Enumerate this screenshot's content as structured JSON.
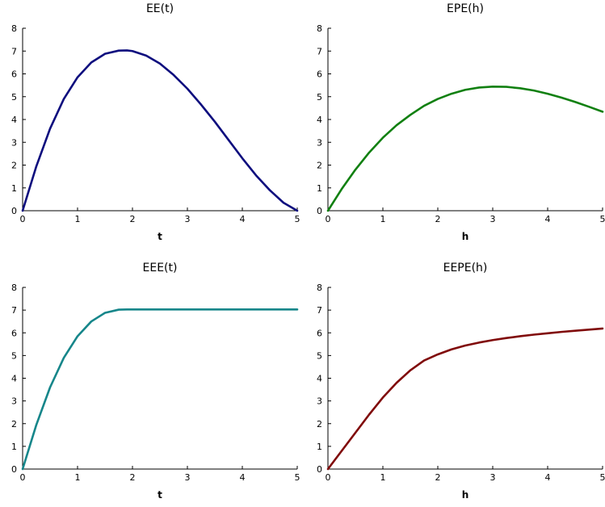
{
  "chart_data": [
    {
      "type": "line",
      "title": "EE(t)",
      "xlabel": "t",
      "ylabel": "",
      "xlim": [
        0,
        5
      ],
      "ylim": [
        0,
        8
      ],
      "x_ticks": [
        "0",
        "1",
        "2",
        "3",
        "4",
        "5"
      ],
      "y_ticks": [
        "0",
        "1",
        "2",
        "3",
        "4",
        "5",
        "6",
        "7",
        "8"
      ],
      "grid": false,
      "series": [
        {
          "color": "#0d0d7e",
          "x": [
            0,
            0.25,
            0.5,
            0.75,
            1.0,
            1.25,
            1.5,
            1.75,
            1.9,
            2.0,
            2.25,
            2.5,
            2.75,
            3.0,
            3.25,
            3.5,
            3.75,
            4.0,
            4.25,
            4.5,
            4.75,
            5.0
          ],
          "y": [
            0,
            1.95,
            3.6,
            4.9,
            5.85,
            6.5,
            6.88,
            7.02,
            7.03,
            7.0,
            6.8,
            6.45,
            5.95,
            5.35,
            4.65,
            3.9,
            3.1,
            2.3,
            1.55,
            0.9,
            0.35,
            0
          ]
        }
      ]
    },
    {
      "type": "line",
      "title": "EPE(h)",
      "xlabel": "h",
      "ylabel": "",
      "xlim": [
        0,
        5
      ],
      "ylim": [
        0,
        8
      ],
      "x_ticks": [
        "0",
        "1",
        "2",
        "3",
        "4",
        "5"
      ],
      "y_ticks": [
        "0",
        "1",
        "2",
        "3",
        "4",
        "5",
        "6",
        "7",
        "8"
      ],
      "grid": false,
      "series": [
        {
          "color": "#118011",
          "x": [
            0,
            0.25,
            0.5,
            0.75,
            1.0,
            1.25,
            1.5,
            1.75,
            2.0,
            2.25,
            2.5,
            2.75,
            3.0,
            3.25,
            3.5,
            3.75,
            4.0,
            4.25,
            4.5,
            4.75,
            5.0
          ],
          "y": [
            0,
            0.95,
            1.8,
            2.55,
            3.2,
            3.75,
            4.2,
            4.6,
            4.9,
            5.13,
            5.3,
            5.4,
            5.44,
            5.43,
            5.37,
            5.27,
            5.13,
            4.96,
            4.77,
            4.56,
            4.34
          ]
        }
      ]
    },
    {
      "type": "line",
      "title": "EEE(t)",
      "xlabel": "t",
      "ylabel": "",
      "xlim": [
        0,
        5
      ],
      "ylim": [
        0,
        8
      ],
      "x_ticks": [
        "0",
        "1",
        "2",
        "3",
        "4",
        "5"
      ],
      "y_ticks": [
        "0",
        "1",
        "2",
        "3",
        "4",
        "5",
        "6",
        "7",
        "8"
      ],
      "grid": false,
      "series": [
        {
          "color": "#16868a",
          "x": [
            0,
            0.25,
            0.5,
            0.75,
            1.0,
            1.25,
            1.5,
            1.75,
            1.9,
            2.0,
            2.5,
            3.0,
            3.5,
            4.0,
            4.5,
            5.0
          ],
          "y": [
            0,
            1.95,
            3.6,
            4.9,
            5.85,
            6.5,
            6.88,
            7.02,
            7.03,
            7.03,
            7.03,
            7.03,
            7.03,
            7.03,
            7.03,
            7.03
          ]
        }
      ]
    },
    {
      "type": "line",
      "title": "EEPE(h)",
      "xlabel": "h",
      "ylabel": "",
      "xlim": [
        0,
        5
      ],
      "ylim": [
        0,
        8
      ],
      "x_ticks": [
        "0",
        "1",
        "2",
        "3",
        "4",
        "5"
      ],
      "y_ticks": [
        "0",
        "1",
        "2",
        "3",
        "4",
        "5",
        "6",
        "7",
        "8"
      ],
      "grid": false,
      "series": [
        {
          "color": "#800a0a",
          "x": [
            0,
            0.25,
            0.5,
            0.75,
            1.0,
            1.25,
            1.5,
            1.75,
            2.0,
            2.25,
            2.5,
            2.75,
            3.0,
            3.25,
            3.5,
            3.75,
            4.0,
            4.25,
            4.5,
            4.75,
            5.0
          ],
          "y": [
            0,
            0.8,
            1.6,
            2.4,
            3.15,
            3.8,
            4.35,
            4.78,
            5.05,
            5.27,
            5.44,
            5.57,
            5.68,
            5.77,
            5.85,
            5.92,
            5.98,
            6.04,
            6.09,
            6.14,
            6.19
          ]
        }
      ]
    }
  ]
}
